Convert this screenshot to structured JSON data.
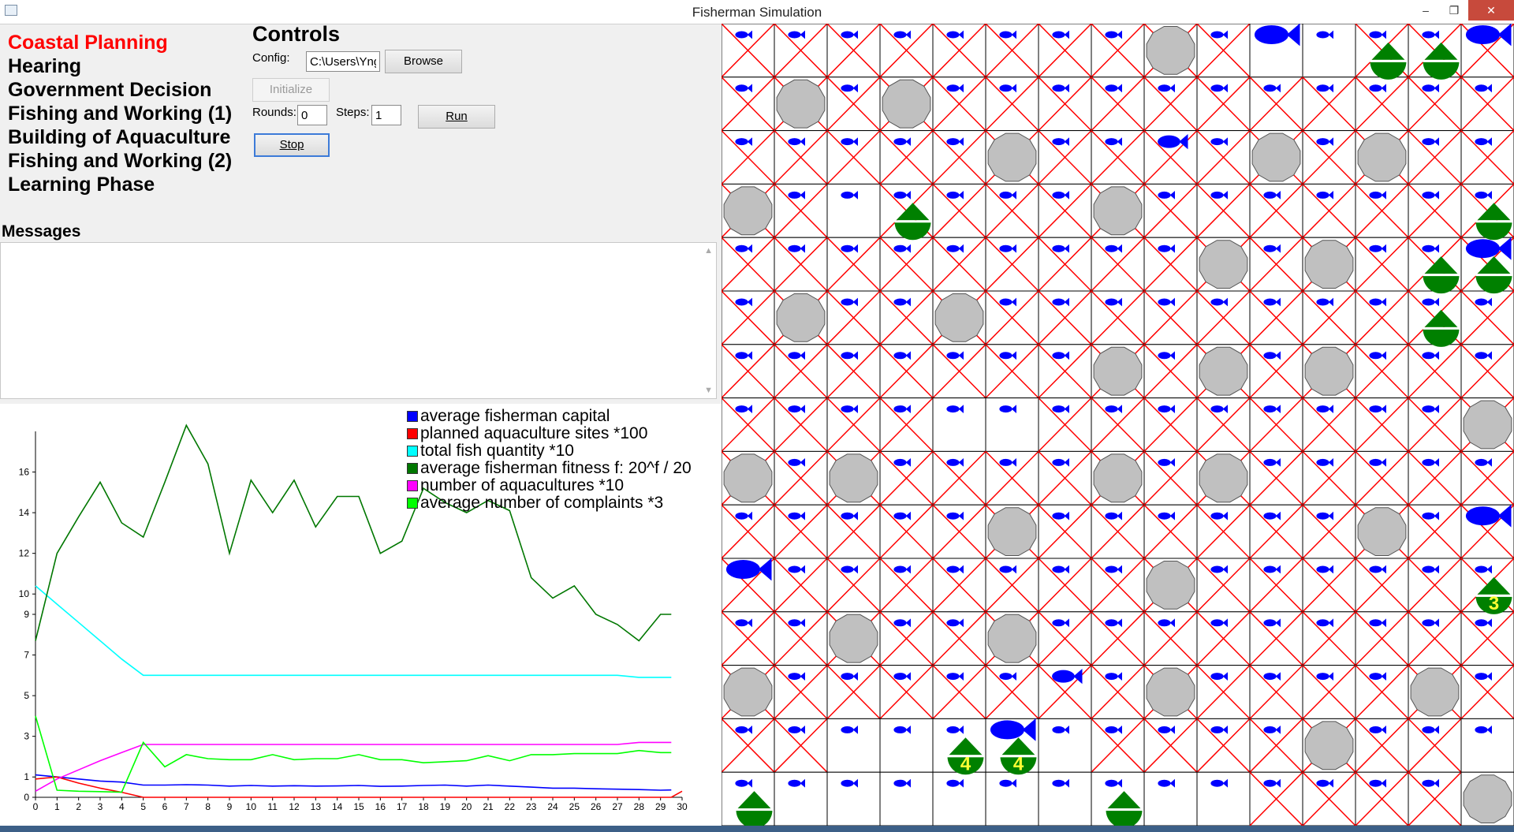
{
  "window": {
    "title": "Fisherman Simulation",
    "minimize_glyph": "–",
    "maximize_glyph": "❐",
    "close_glyph": "✕"
  },
  "phases": [
    {
      "label": "Coastal Planning",
      "active": true
    },
    {
      "label": "Hearing",
      "active": false
    },
    {
      "label": "Government Decision",
      "active": false
    },
    {
      "label": "Fishing and Working (1)",
      "active": false
    },
    {
      "label": "Building of Aquaculture",
      "active": false
    },
    {
      "label": "Fishing and Working (2)",
      "active": false
    },
    {
      "label": "Learning Phase",
      "active": false
    }
  ],
  "controls": {
    "heading": "Controls",
    "config_label": "Config:",
    "config_value": "C:\\Users\\Yng",
    "browse_label": "Browse",
    "initialize_label": "Initialize",
    "rounds_label": "Rounds:",
    "rounds_value": "0",
    "steps_label": "Steps:",
    "steps_value": "1",
    "run_label": "Run",
    "stop_label": "Stop"
  },
  "messages": {
    "heading": "Messages"
  },
  "chart_data": {
    "type": "line",
    "title": "",
    "xlabel": "",
    "ylabel": "",
    "xlim": [
      0,
      30
    ],
    "ylim": [
      0,
      18
    ],
    "x_ticks": [
      0,
      1,
      2,
      3,
      4,
      5,
      6,
      7,
      8,
      9,
      10,
      11,
      12,
      13,
      14,
      15,
      16,
      17,
      18,
      19,
      20,
      21,
      22,
      23,
      24,
      25,
      26,
      27,
      28,
      29,
      30
    ],
    "y_ticks": [
      0,
      1,
      3,
      5,
      7,
      9,
      10,
      12,
      14,
      16
    ],
    "legend_position": "top-right",
    "grid": false,
    "series": [
      {
        "name": "average fisherman capital",
        "color": "#0000ff",
        "x": [
          0,
          1,
          2,
          3,
          4,
          5,
          6,
          7,
          8,
          9,
          10,
          11,
          12,
          13,
          14,
          15,
          16,
          17,
          18,
          19,
          20,
          21,
          22,
          23,
          24,
          25,
          26,
          27,
          28,
          29,
          29.5
        ],
        "values": [
          1.1,
          1.0,
          0.9,
          0.8,
          0.75,
          0.6,
          0.6,
          0.62,
          0.6,
          0.55,
          0.58,
          0.55,
          0.57,
          0.55,
          0.56,
          0.58,
          0.54,
          0.55,
          0.58,
          0.6,
          0.55,
          0.6,
          0.55,
          0.5,
          0.45,
          0.45,
          0.42,
          0.4,
          0.38,
          0.35,
          0.36
        ]
      },
      {
        "name": "planned aquaculture sites *100",
        "color": "#ff0000",
        "x": [
          0,
          1,
          2,
          3,
          4,
          5,
          6,
          10,
          15,
          20,
          25,
          29.5,
          30
        ],
        "values": [
          0.9,
          1.0,
          0.7,
          0.45,
          0.25,
          0.0,
          0.0,
          0.0,
          0.0,
          0.0,
          0.0,
          0.0,
          0.3
        ]
      },
      {
        "name": "total fish quantity *10",
        "color": "#00ffff",
        "x": [
          0,
          1,
          2,
          3,
          4,
          5,
          10,
          15,
          20,
          25,
          27,
          28,
          29.5
        ],
        "values": [
          10.4,
          9.5,
          8.6,
          7.7,
          6.8,
          6.0,
          6.0,
          6.0,
          6.0,
          6.0,
          6.0,
          5.9,
          5.9
        ]
      },
      {
        "name": "average fisherman fitness f: 20^f / 20",
        "color": "#007700",
        "x": [
          0,
          1,
          2,
          3,
          4,
          5,
          6,
          7,
          8,
          9,
          10,
          11,
          12,
          13,
          14,
          15,
          16,
          17,
          18,
          19,
          20,
          21,
          22,
          23,
          24,
          25,
          26,
          27,
          28,
          29,
          29.5
        ],
        "values": [
          7.7,
          12.0,
          13.8,
          15.5,
          13.5,
          12.8,
          15.5,
          18.3,
          16.4,
          12.0,
          15.6,
          14.0,
          15.6,
          13.3,
          14.8,
          14.8,
          12.0,
          12.6,
          15.2,
          14.5,
          14.0,
          14.6,
          14.1,
          10.8,
          9.8,
          10.4,
          9.0,
          8.5,
          7.7,
          9.0,
          9.0
        ]
      },
      {
        "name": "number of aquacultures *10",
        "color": "#ff00ff",
        "x": [
          0,
          1,
          2,
          3,
          4,
          5,
          10,
          15,
          20,
          25,
          27,
          28,
          29.5
        ],
        "values": [
          0.3,
          0.9,
          1.35,
          1.8,
          2.2,
          2.6,
          2.6,
          2.6,
          2.6,
          2.6,
          2.6,
          2.7,
          2.7
        ]
      },
      {
        "name": "average number of complaints *3",
        "color": "#00ff00",
        "x": [
          0,
          1,
          2,
          3,
          4,
          5,
          6,
          7,
          8,
          9,
          10,
          11,
          12,
          13,
          14,
          15,
          16,
          17,
          18,
          19,
          20,
          21,
          22,
          23,
          24,
          25,
          26,
          27,
          28,
          29,
          29.5
        ],
        "values": [
          4.0,
          0.35,
          0.3,
          0.28,
          0.25,
          2.7,
          1.5,
          2.1,
          1.9,
          1.85,
          1.85,
          2.1,
          1.85,
          1.9,
          1.9,
          2.1,
          1.85,
          1.85,
          1.7,
          1.75,
          1.8,
          2.05,
          1.8,
          2.1,
          2.1,
          2.15,
          2.15,
          2.15,
          2.3,
          2.2,
          2.2
        ]
      }
    ]
  },
  "grid": {
    "cols": 15,
    "rows": 15,
    "crossed_color": "#ff0000",
    "rocks": [
      [
        8,
        0
      ],
      [
        1,
        1
      ],
      [
        3,
        1
      ],
      [
        5,
        2
      ],
      [
        10,
        2
      ],
      [
        12,
        2
      ],
      [
        0,
        3
      ],
      [
        7,
        3
      ],
      [
        9,
        4
      ],
      [
        11,
        4
      ],
      [
        1,
        5
      ],
      [
        4,
        5
      ],
      [
        7,
        6
      ],
      [
        9,
        6
      ],
      [
        11,
        6
      ],
      [
        14,
        7
      ],
      [
        0,
        8
      ],
      [
        2,
        8
      ],
      [
        7,
        8
      ],
      [
        9,
        8
      ],
      [
        5,
        9
      ],
      [
        12,
        9
      ],
      [
        8,
        10
      ],
      [
        2,
        11
      ],
      [
        5,
        11
      ],
      [
        0,
        12
      ],
      [
        8,
        12
      ],
      [
        13,
        12
      ],
      [
        11,
        13
      ],
      [
        14,
        14
      ]
    ],
    "open": [
      [
        0,
        14
      ],
      [
        1,
        14
      ],
      [
        2,
        14
      ],
      [
        3,
        14
      ],
      [
        4,
        14
      ],
      [
        5,
        14
      ],
      [
        6,
        14
      ],
      [
        7,
        14
      ],
      [
        8,
        14
      ],
      [
        9,
        14
      ],
      [
        2,
        13
      ],
      [
        3,
        13
      ],
      [
        4,
        13
      ],
      [
        5,
        13
      ],
      [
        6,
        13
      ],
      [
        4,
        7
      ],
      [
        5,
        7
      ],
      [
        14,
        13
      ],
      [
        14,
        14
      ],
      [
        2,
        3
      ],
      [
        10,
        0
      ],
      [
        11,
        0
      ]
    ],
    "boats": [
      {
        "col": 12,
        "row": 0,
        "count": ""
      },
      {
        "col": 13,
        "row": 0,
        "count": ""
      },
      {
        "col": 3,
        "row": 3,
        "count": ""
      },
      {
        "col": 14,
        "row": 3,
        "count": ""
      },
      {
        "col": 13,
        "row": 4,
        "count": ""
      },
      {
        "col": 14,
        "row": 4,
        "count": ""
      },
      {
        "col": 13,
        "row": 5,
        "count": ""
      },
      {
        "col": 14,
        "row": 10,
        "count": "3"
      },
      {
        "col": 4,
        "row": 13,
        "count": "4"
      },
      {
        "col": 5,
        "row": 13,
        "count": "4"
      },
      {
        "col": 0,
        "row": 14,
        "count": ""
      },
      {
        "col": 7,
        "row": 14,
        "count": ""
      }
    ],
    "big_fish": [
      [
        10,
        0
      ],
      [
        14,
        0
      ],
      [
        14,
        4
      ],
      [
        14,
        9
      ],
      [
        0,
        10
      ],
      [
        5,
        13
      ]
    ],
    "medium_fish": [
      [
        8,
        2
      ],
      [
        6,
        12
      ]
    ]
  }
}
